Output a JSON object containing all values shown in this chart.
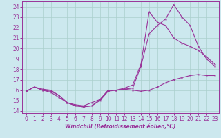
{
  "xlabel": "Windchill (Refroidissement éolien,°C)",
  "bg_color": "#cce8ee",
  "grid_color": "#aacfcc",
  "line_color": "#993399",
  "xlim": [
    -0.5,
    23.5
  ],
  "ylim": [
    13.8,
    24.5
  ],
  "x_ticks": [
    0,
    1,
    2,
    3,
    4,
    5,
    6,
    7,
    8,
    9,
    10,
    11,
    12,
    13,
    14,
    15,
    16,
    17,
    18,
    19,
    20,
    21,
    22,
    23
  ],
  "yticks": [
    14,
    15,
    16,
    17,
    18,
    19,
    20,
    21,
    22,
    23,
    24
  ],
  "line1_x": [
    0,
    1,
    2,
    3,
    4,
    5,
    6,
    7,
    8,
    9,
    10,
    11,
    12,
    13,
    14,
    15,
    16,
    17,
    18,
    19,
    20,
    21,
    22,
    23
  ],
  "line1_y": [
    15.9,
    16.3,
    16.1,
    16.0,
    15.5,
    14.8,
    14.5,
    14.4,
    14.5,
    15.0,
    15.9,
    16.0,
    16.1,
    16.0,
    15.9,
    16.0,
    16.3,
    16.7,
    17.0,
    17.2,
    17.4,
    17.5,
    17.4,
    17.4
  ],
  "line2_x": [
    0,
    1,
    2,
    3,
    4,
    5,
    6,
    7,
    8,
    9,
    10,
    11,
    12,
    13,
    14,
    15,
    16,
    17,
    18,
    19,
    20,
    21,
    22,
    23
  ],
  "line2_y": [
    15.9,
    16.3,
    16.0,
    15.8,
    15.3,
    14.8,
    14.5,
    14.4,
    14.5,
    15.1,
    16.0,
    16.0,
    16.1,
    16.2,
    18.3,
    21.4,
    22.2,
    22.8,
    24.2,
    23.0,
    22.2,
    20.2,
    19.0,
    18.3
  ],
  "line3_x": [
    0,
    1,
    2,
    3,
    4,
    5,
    6,
    7,
    8,
    9,
    10,
    11,
    12,
    13,
    14,
    15,
    16,
    17,
    18,
    19,
    20,
    21,
    22,
    23
  ],
  "line3_y": [
    15.9,
    16.3,
    16.0,
    15.9,
    15.5,
    14.8,
    14.6,
    14.5,
    14.8,
    15.1,
    16.0,
    16.0,
    16.2,
    16.5,
    18.5,
    23.5,
    22.5,
    22.2,
    21.0,
    20.5,
    20.2,
    19.8,
    19.2,
    18.5
  ],
  "tick_fontsize": 5.5,
  "xlabel_fontsize": 5.5
}
